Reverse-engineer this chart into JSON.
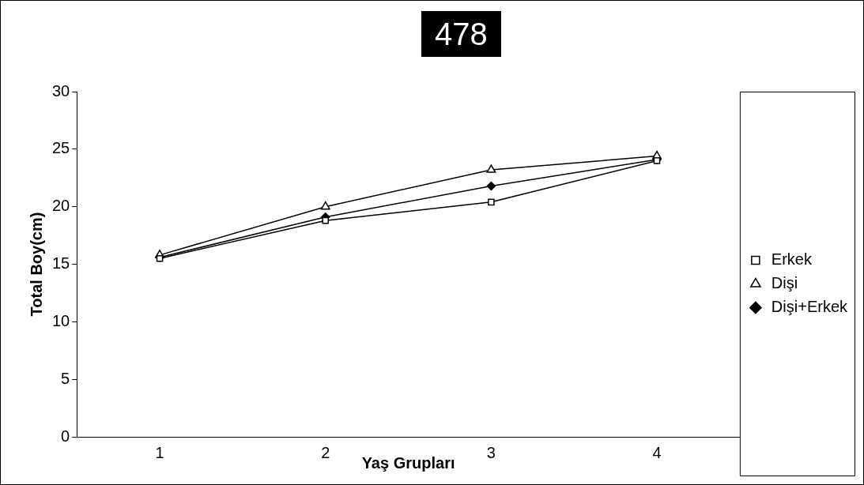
{
  "chart_data": {
    "type": "line",
    "title": "478",
    "xlabel": "Yaş Grupları",
    "ylabel": "Total Boy(cm)",
    "categories": [
      "1",
      "2",
      "3",
      "4"
    ],
    "series": [
      {
        "name": "Erkek",
        "color": "#000000",
        "marker": "square",
        "values": [
          15.5,
          18.8,
          20.4,
          24.0
        ]
      },
      {
        "name": "Dişi",
        "color": "#000000",
        "marker": "triangle",
        "values": [
          15.8,
          20.0,
          23.2,
          24.4
        ]
      },
      {
        "name": "Dişi+Erkek",
        "color": "#000000",
        "marker": "diamond",
        "values": [
          15.6,
          19.1,
          21.8,
          24.1
        ]
      }
    ],
    "ylim": [
      0,
      30
    ],
    "yticks": [
      0,
      5,
      10,
      15,
      20,
      25,
      30
    ],
    "grid": false,
    "legend": "right",
    "line_style": "solid"
  }
}
